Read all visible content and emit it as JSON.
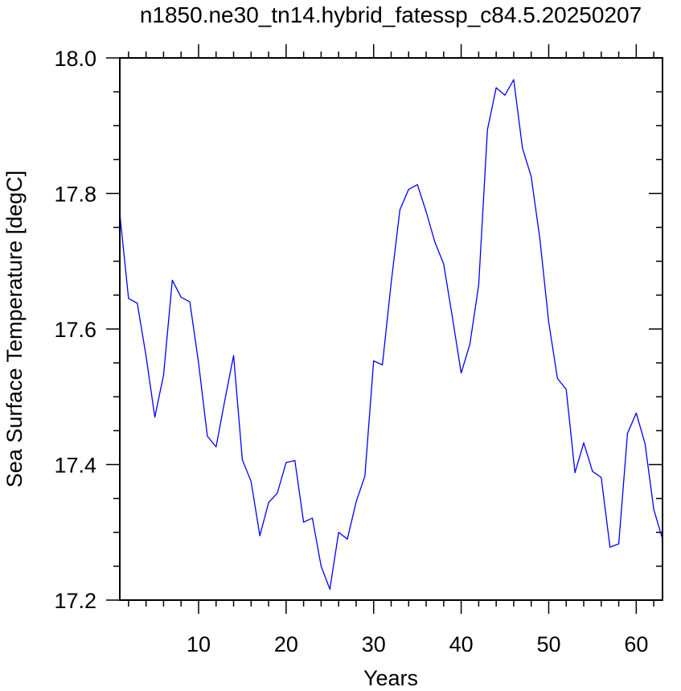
{
  "chart_data": {
    "type": "line",
    "title": "n1850.ne30_tn14.hybrid_fatessp_c84.5.20250207",
    "xlabel": "Years",
    "ylabel": "Sea Surface Temperature [degC]",
    "xlim": [
      1,
      63
    ],
    "ylim": [
      17.2,
      18.0
    ],
    "xticks": [
      10,
      20,
      30,
      40,
      50,
      60
    ],
    "xtick_labels": [
      "10",
      "20",
      "30",
      "40",
      "50",
      "60"
    ],
    "yticks": [
      17.2,
      17.4,
      17.6,
      17.8,
      18.0
    ],
    "ytick_labels": [
      "17.2",
      "17.4",
      "17.6",
      "17.8",
      "18.0"
    ],
    "grid": false,
    "line_color": "#0000ff",
    "series": [
      {
        "x": [
          1,
          2,
          3,
          4,
          5,
          6,
          7,
          8,
          9,
          10,
          11,
          12,
          13,
          14,
          15,
          16,
          17,
          18,
          19,
          20,
          21,
          22,
          23,
          24,
          25,
          26,
          27,
          28,
          29,
          30,
          31,
          32,
          33,
          34,
          35,
          36,
          37,
          38,
          39,
          40,
          41,
          42,
          43,
          44,
          45,
          46,
          47,
          48,
          49,
          50,
          51,
          52,
          53,
          54,
          55,
          56,
          57,
          58,
          59,
          60,
          61,
          62,
          63
        ],
        "values": [
          17.77,
          17.645,
          17.638,
          17.56,
          17.47,
          17.532,
          17.672,
          17.647,
          17.64,
          17.55,
          17.442,
          17.426,
          17.495,
          17.561,
          17.407,
          17.375,
          17.295,
          17.344,
          17.358,
          17.403,
          17.406,
          17.315,
          17.321,
          17.25,
          17.216,
          17.3,
          17.29,
          17.345,
          17.383,
          17.553,
          17.547,
          17.668,
          17.776,
          17.806,
          17.813,
          17.773,
          17.728,
          17.696,
          17.617,
          17.535,
          17.578,
          17.665,
          17.894,
          17.956,
          17.945,
          17.968,
          17.867,
          17.825,
          17.732,
          17.61,
          17.527,
          17.511,
          17.388,
          17.432,
          17.39,
          17.381,
          17.278,
          17.283,
          17.446,
          17.476,
          17.431,
          17.334,
          17.29
        ]
      }
    ]
  }
}
